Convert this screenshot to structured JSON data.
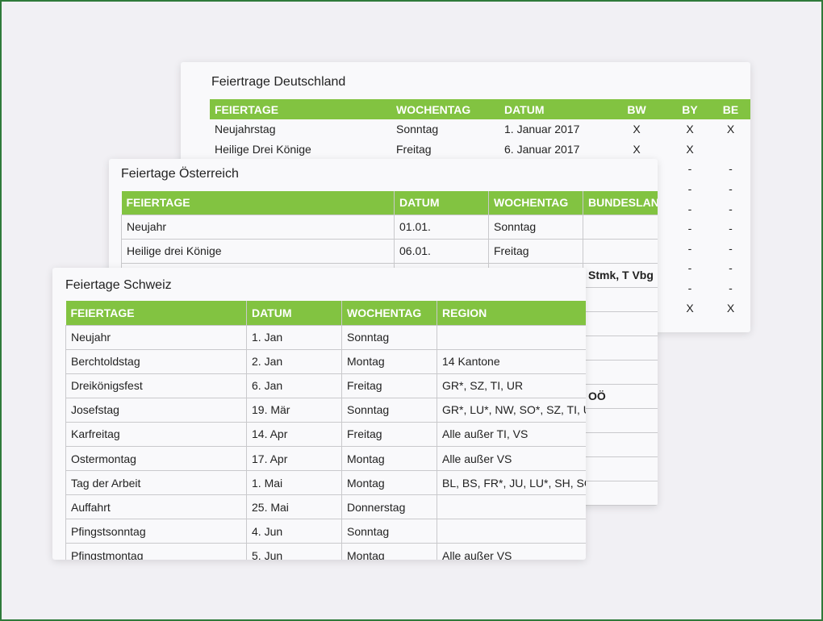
{
  "colors": {
    "header": "#82c341",
    "frame": "#2f7a3a",
    "background": "#f1f0f4"
  },
  "de": {
    "title": "Feiertrage Deutschland",
    "headers": [
      "FEIERTAGE",
      "WOCHENTAG",
      "DATUM",
      "BW",
      "BY",
      "BE"
    ],
    "rows": [
      [
        "Neujahrstag",
        "Sonntag",
        "1. Januar 2017",
        "X",
        "X",
        "X"
      ],
      [
        "Heilige Drei Könige",
        "Freitag",
        "6. Januar 2017",
        "X",
        "X",
        ""
      ],
      [
        "",
        "",
        "",
        "",
        "-",
        "-"
      ],
      [
        "",
        "",
        "",
        "",
        "-",
        "-"
      ],
      [
        "",
        "",
        "",
        "",
        "-",
        "-"
      ],
      [
        "",
        "",
        "",
        "",
        "-",
        "-"
      ],
      [
        "",
        "",
        "",
        "",
        "-",
        "-"
      ],
      [
        "",
        "",
        "",
        "",
        "-",
        "-"
      ],
      [
        "",
        "",
        "",
        "",
        "-",
        "-"
      ],
      [
        "",
        "",
        "",
        "",
        "X",
        "X"
      ]
    ]
  },
  "at": {
    "title": "Feiertage Österreich",
    "headers": [
      "FEIERTAGE",
      "DATUM",
      "WOCHENTAG",
      "BUNDESLAND"
    ],
    "rows": [
      [
        "Neujahr",
        "01.01.",
        "Sonntag",
        ""
      ],
      [
        "Heilige drei Könige",
        "06.01.",
        "Freitag",
        ""
      ],
      [
        "",
        "",
        "",
        "Stmk, T Vbg"
      ],
      [
        "",
        "",
        "",
        ""
      ],
      [
        "",
        "",
        "",
        ""
      ],
      [
        "",
        "",
        "",
        ""
      ],
      [
        "",
        "",
        "",
        ""
      ],
      [
        "",
        "",
        "",
        "OÖ"
      ],
      [
        "",
        "",
        "",
        ""
      ],
      [
        "",
        "",
        "",
        ""
      ],
      [
        "",
        "",
        "",
        ""
      ],
      [
        "",
        "",
        "",
        ""
      ]
    ]
  },
  "ch": {
    "title": "Feiertage Schweiz",
    "headers": [
      "FEIERTAGE",
      "DATUM",
      "WOCHENTAG",
      "REGION"
    ],
    "rows": [
      [
        "Neujahr",
        "1. Jan",
        "Sonntag",
        ""
      ],
      [
        "Berchtoldstag",
        "2. Jan",
        "Montag",
        "14 Kantone"
      ],
      [
        "Dreikönigsfest",
        "6. Jan",
        "Freitag",
        "GR*, SZ, TI, UR"
      ],
      [
        "Josefstag",
        "19. Mär",
        "Sonntag",
        "GR*, LU*, NW, SO*, SZ, TI, UR, VS"
      ],
      [
        "Karfreitag",
        "14. Apr",
        "Freitag",
        "Alle außer TI, VS"
      ],
      [
        "Ostermontag",
        "17. Apr",
        "Montag",
        "Alle außer VS"
      ],
      [
        "Tag der Arbeit",
        "1. Mai",
        "Montag",
        "BL, BS, FR*, JU, LU*, SH, SO*"
      ],
      [
        "Auffahrt",
        "25. Mai",
        "Donnerstag",
        ""
      ],
      [
        "Pfingstsonntag",
        "4. Jun",
        "Sonntag",
        ""
      ],
      [
        "Pfingstmontag",
        "5. Jun",
        "Montag",
        "Alle außer VS"
      ]
    ]
  }
}
